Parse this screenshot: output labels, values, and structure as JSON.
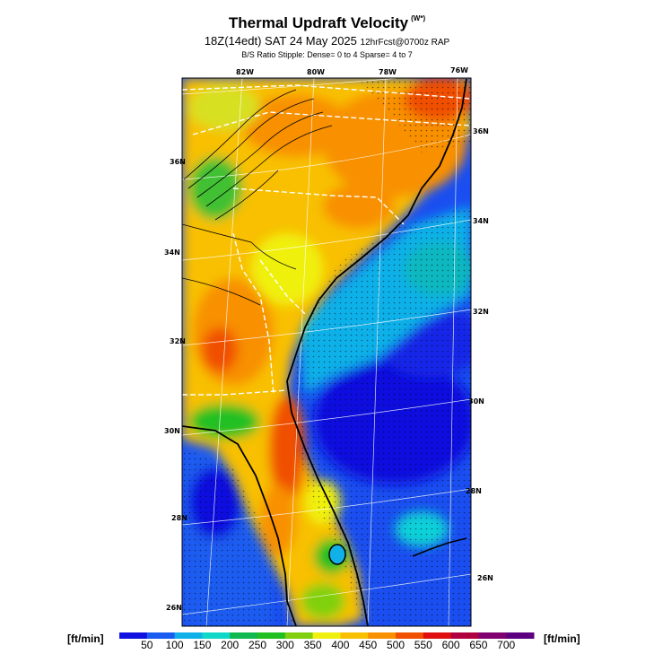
{
  "header": {
    "title": "Thermal Updraft Velocity",
    "title_unit": "(W*)",
    "subtitle_main": "18Z(14edt) SAT 24 May 2025",
    "subtitle_fcst": "12hrFcst@0700z RAP",
    "stipple_note": "B/S Ratio Stipple:  Dense= 0 to 4  Sparse= 4 to 7"
  },
  "map": {
    "lon_labels": [
      "82W",
      "80W",
      "78W",
      "76W"
    ],
    "lat_labels_left": [
      "36N",
      "34N",
      "32N",
      "30N",
      "28N",
      "26N"
    ],
    "lat_labels_right": [
      "36N",
      "34N",
      "32N",
      "30N",
      "28N",
      "26N"
    ]
  },
  "colorbar": {
    "unit_left": "[ft/min]",
    "unit_right": "[ft/min]",
    "ticks": [
      "50",
      "100",
      "150",
      "200",
      "250",
      "300",
      "350",
      "400",
      "450",
      "500",
      "550",
      "600",
      "650",
      "700"
    ],
    "colors": [
      "#1010e0",
      "#1a5cf0",
      "#10b0e8",
      "#10d8c8",
      "#10b850",
      "#20c020",
      "#80d010",
      "#f0f010",
      "#f8c000",
      "#f89000",
      "#f05000",
      "#e01010",
      "#b00040",
      "#800070",
      "#5c0080"
    ]
  }
}
